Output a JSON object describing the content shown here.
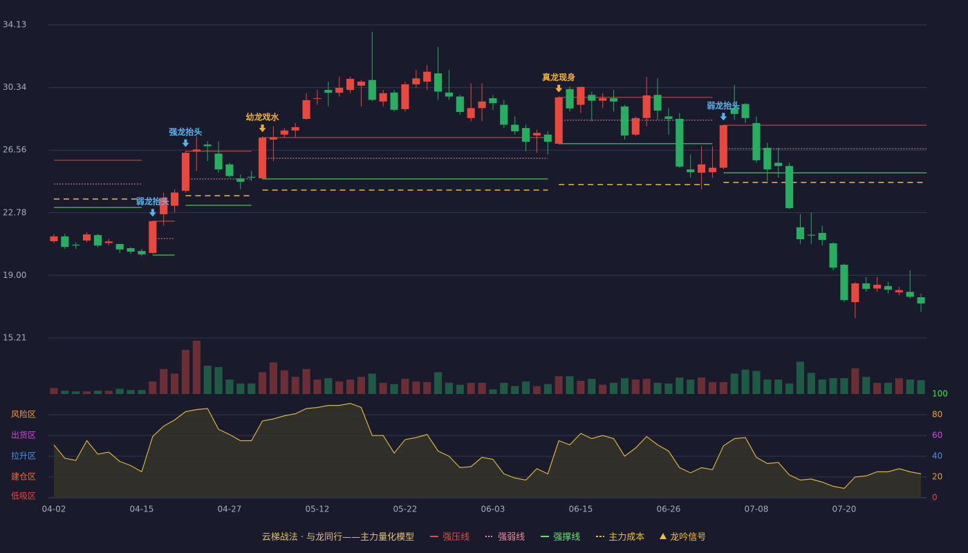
{
  "chart_data": {
    "type": "candlestick",
    "categories": [
      "04-02",
      null,
      null,
      null,
      null,
      null,
      null,
      null,
      "04-15",
      null,
      null,
      null,
      null,
      null,
      null,
      null,
      "04-27",
      null,
      null,
      null,
      null,
      null,
      null,
      null,
      "05-12",
      null,
      null,
      null,
      null,
      null,
      null,
      null,
      "05-22",
      null,
      null,
      null,
      null,
      null,
      null,
      null,
      "06-03",
      null,
      null,
      null,
      null,
      null,
      null,
      null,
      "06-15",
      null,
      null,
      null,
      null,
      null,
      null,
      null,
      "06-26",
      null,
      null,
      null,
      null,
      null,
      null,
      null,
      "07-08",
      null,
      null,
      null,
      null,
      null,
      null,
      null,
      "07-20",
      null,
      null,
      null,
      null,
      null,
      null,
      null
    ],
    "open": [
      21.06,
      21.35,
      20.85,
      21.1,
      21.43,
      20.95,
      20.89,
      20.64,
      20.47,
      20.35,
      22.69,
      23.2,
      24.1,
      26.5,
      26.9,
      26.35,
      25.7,
      24.85,
      24.95,
      24.86,
      27.2,
      27.5,
      27.75,
      28.45,
      29.7,
      30.2,
      30.03,
      30.2,
      30.46,
      30.8,
      29.5,
      30.04,
      29.04,
      30.54,
      30.7,
      31.2,
      30.04,
      29.8,
      28.5,
      29.1,
      29.7,
      29.3,
      28.1,
      27.9,
      27.45,
      27.5,
      26.95,
      30.25,
      29.3,
      29.9,
      29.55,
      29.7,
      29.2,
      27.5,
      28.5,
      29.9,
      28.6,
      28.45,
      25.4,
      25.2,
      25.23,
      25.5,
      29.1,
      29.35,
      28.2,
      26.7,
      25.8,
      25.6,
      21.9,
      21.45,
      21.56,
      20.93,
      19.64,
      17.38,
      18.51,
      18.2,
      18.35,
      17.97,
      18.0,
      17.67
    ],
    "high": [
      21.5,
      21.5,
      21.0,
      21.6,
      21.5,
      21.2,
      20.9,
      20.7,
      20.6,
      22.3,
      24.0,
      24.2,
      26.5,
      27.4,
      27.1,
      27.1,
      25.8,
      25.1,
      25.3,
      27.4,
      28.0,
      27.9,
      28.2,
      30.0,
      30.2,
      30.7,
      31.0,
      31.0,
      30.8,
      33.7,
      30.2,
      30.2,
      30.7,
      31.4,
      31.7,
      32.8,
      31.4,
      29.9,
      30.6,
      30.6,
      29.9,
      29.6,
      28.6,
      28.1,
      27.8,
      27.7,
      29.8,
      30.4,
      30.4,
      30.1,
      30.0,
      30.2,
      29.3,
      28.6,
      31.0,
      30.9,
      29.1,
      28.8,
      26.3,
      26.8,
      26.8,
      28.1,
      30.5,
      29.4,
      28.6,
      27.0,
      26.7,
      25.8,
      22.7,
      22.8,
      22.0,
      21.0,
      19.7,
      18.6,
      18.9,
      18.9,
      18.6,
      18.3,
      19.3,
      17.9
    ],
    "low": [
      20.95,
      20.6,
      20.6,
      21.0,
      20.7,
      20.8,
      20.35,
      20.3,
      20.15,
      20.3,
      22.0,
      22.8,
      24.0,
      25.3,
      25.9,
      25.2,
      24.9,
      24.2,
      24.7,
      24.8,
      25.9,
      27.3,
      27.3,
      28.4,
      29.3,
      29.2,
      29.8,
      30.0,
      29.2,
      29.5,
      29.2,
      28.9,
      28.9,
      30.3,
      30.2,
      29.6,
      29.6,
      28.7,
      28.3,
      28.3,
      29.0,
      27.9,
      27.5,
      26.5,
      26.4,
      26.3,
      26.9,
      28.9,
      28.8,
      28.3,
      29.1,
      28.9,
      27.2,
      27.4,
      28.0,
      28.4,
      27.5,
      25.5,
      24.9,
      24.2,
      24.9,
      25.4,
      28.4,
      28.2,
      25.8,
      24.7,
      24.9,
      23.0,
      20.9,
      20.9,
      20.8,
      19.3,
      17.4,
      16.4,
      18.0,
      18.0,
      17.9,
      17.8,
      17.6,
      16.8
    ],
    "close": [
      21.35,
      20.72,
      20.8,
      21.47,
      20.8,
      21.05,
      20.56,
      20.43,
      20.26,
      22.27,
      23.69,
      24.0,
      26.4,
      26.6,
      26.8,
      25.4,
      25.0,
      24.65,
      24.9,
      27.32,
      27.35,
      27.75,
      27.95,
      29.58,
      29.7,
      30.03,
      30.33,
      30.87,
      30.7,
      29.6,
      30.0,
      29.0,
      30.54,
      30.9,
      31.3,
      30.1,
      29.8,
      28.87,
      29.1,
      29.5,
      29.4,
      28.1,
      27.7,
      27.07,
      27.6,
      27.07,
      29.75,
      29.08,
      30.38,
      29.55,
      29.7,
      29.5,
      27.45,
      28.5,
      29.87,
      28.95,
      28.45,
      25.57,
      25.23,
      25.7,
      25.5,
      28.07,
      28.75,
      28.5,
      25.95,
      25.4,
      25.6,
      23.06,
      21.18,
      21.4,
      21.14,
      19.47,
      17.5,
      18.51,
      18.18,
      18.43,
      18.13,
      18.1,
      17.7,
      17.3
    ],
    "up_color": "#e8483e",
    "down_color": "#27ae60",
    "ylim": [
      15.21,
      34.13
    ],
    "yticks": [
      34.13,
      30.34,
      26.56,
      22.78,
      {
        "value": 19,
        "label": "19.00"
      },
      15.21
    ],
    "grid": true,
    "volume": {
      "values": [
        9,
        5,
        4,
        4,
        5,
        5,
        8,
        6,
        6,
        19,
        38,
        31,
        67,
        81,
        43,
        41,
        22,
        16,
        16,
        33,
        48,
        36,
        26,
        38,
        22,
        24,
        19,
        22,
        26,
        31,
        17,
        15,
        23,
        19,
        18,
        33,
        17,
        14,
        17,
        17,
        7,
        17,
        12,
        19,
        12,
        15,
        27,
        27,
        20,
        23,
        14,
        17,
        24,
        22,
        23,
        17,
        16,
        25,
        22,
        25,
        18,
        18,
        31,
        37,
        35,
        22,
        22,
        16,
        49,
        32,
        22,
        24,
        24,
        39,
        26,
        17,
        17,
        24,
        22,
        21
      ],
      "ylim": [
        0,
        85
      ],
      "up_color": "#6b2e35",
      "down_color": "#1f5a44"
    },
    "oscillator": {
      "values": [
        51,
        38,
        36,
        55,
        42,
        44,
        35,
        31,
        25,
        59,
        69,
        75,
        83,
        85,
        86,
        66,
        61,
        55,
        55,
        74,
        76,
        79,
        81,
        86,
        87,
        89,
        89,
        91,
        87,
        60,
        60,
        43,
        56,
        58,
        61,
        45,
        40,
        29,
        30,
        39,
        37,
        23,
        19,
        17,
        28,
        23,
        55,
        51,
        62,
        57,
        60,
        57,
        40,
        48,
        59,
        51,
        45,
        29,
        24,
        29,
        27,
        50,
        57,
        58,
        39,
        33,
        34,
        22,
        17,
        18,
        15,
        11,
        9,
        20,
        21,
        25,
        25,
        28,
        25,
        23
      ],
      "ylim": [
        0,
        100
      ],
      "yticks": [
        0,
        20,
        40,
        60,
        80,
        100
      ],
      "ytick_colors": [
        "#e84545",
        "#f0a030",
        "#4a90e8",
        "#e040e0",
        "#f0a030",
        "#3ee83e"
      ],
      "color": "#d9b43a",
      "fill": "#36322a",
      "zones": [
        {
          "label": "低吸区",
          "value": 0,
          "color": "#e84545"
        },
        {
          "label": "建仓区",
          "value": 20,
          "color": "#f06a40"
        },
        {
          "label": "拉升区",
          "value": 40,
          "color": "#4a90e8"
        },
        {
          "label": "出货区",
          "value": 60,
          "color": "#e040e0"
        },
        {
          "label": "风险区",
          "value": 80,
          "color": "#f0a030"
        }
      ]
    },
    "levels": [
      {
        "name": "强压线",
        "color": "#e8483e",
        "style": "solid",
        "segments": [
          {
            "from": 0,
            "to": 8,
            "value": 25.95
          },
          {
            "from": 9,
            "to": 11,
            "value": 22.27
          },
          {
            "from": 12,
            "to": 18,
            "value": 26.49
          },
          {
            "from": 19,
            "to": 45,
            "value": 27.32
          },
          {
            "from": 46,
            "to": 60,
            "value": 29.75
          },
          {
            "from": 61,
            "to": 79,
            "value": 28.07
          }
        ]
      },
      {
        "name": "强弱线",
        "color": "#f08a9a",
        "style": "dotted",
        "segments": [
          {
            "from": 0,
            "to": 8,
            "value": 24.52
          },
          {
            "from": 9,
            "to": 11,
            "value": 21.22
          },
          {
            "from": 12,
            "to": 18,
            "value": 24.82
          },
          {
            "from": 19,
            "to": 45,
            "value": 26.07
          },
          {
            "from": 46,
            "to": 60,
            "value": 28.37
          },
          {
            "from": 61,
            "to": 79,
            "value": 26.65
          }
        ]
      },
      {
        "name": "强撑线",
        "color": "#5ee86a",
        "style": "solid",
        "segments": [
          {
            "from": 0,
            "to": 8,
            "value": 23.1
          },
          {
            "from": 9,
            "to": 11,
            "value": 20.22
          },
          {
            "from": 12,
            "to": 18,
            "value": 23.23
          },
          {
            "from": 19,
            "to": 45,
            "value": 24.82
          },
          {
            "from": 46,
            "to": 60,
            "value": 26.95
          },
          {
            "from": 61,
            "to": 79,
            "value": 25.19
          }
        ]
      },
      {
        "name": "主力成本",
        "color": "#f0c030",
        "style": "dashed",
        "segments": [
          {
            "from": 0,
            "to": 8,
            "value": 23.61
          },
          {
            "from": 12,
            "to": 18,
            "value": 23.81
          },
          {
            "from": 19,
            "to": 45,
            "value": 24.15
          },
          {
            "from": 46,
            "to": 60,
            "value": 24.48
          },
          {
            "from": 61,
            "to": 79,
            "value": 24.61
          }
        ]
      }
    ],
    "signals": [
      {
        "index": 9,
        "label": "弱龙抬头",
        "color": "#5ab4f0"
      },
      {
        "index": 12,
        "label": "强龙抬头",
        "color": "#5ab4f0"
      },
      {
        "index": 19,
        "label": "幼龙戏水",
        "color": "#f0b030"
      },
      {
        "index": 46,
        "label": "真龙现身",
        "color": "#f0b030"
      },
      {
        "index": 61,
        "label": "弱龙抬头",
        "color": "#5ab4f0"
      }
    ],
    "legend_title": "云梯战法 · 与龙同行——主力量化模型",
    "signal_legend": {
      "name": "龙吟信号",
      "color": "#f0c030"
    }
  }
}
